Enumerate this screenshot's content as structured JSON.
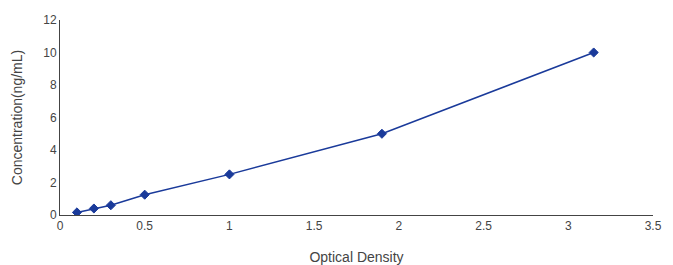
{
  "chart_data": {
    "type": "line",
    "x": [
      0.1,
      0.2,
      0.3,
      0.5,
      1.0,
      1.9,
      3.15
    ],
    "values": [
      0.16,
      0.4,
      0.6,
      1.25,
      2.5,
      5.0,
      10.0
    ],
    "color": "#1a3a9a",
    "marker": "diamond",
    "line_style": "solid",
    "xlabel": "Optical Density",
    "ylabel": "Concentration(ng/mL)",
    "xlim": [
      0,
      3.5
    ],
    "ylim": [
      0,
      12
    ],
    "xticks": [
      0,
      0.5,
      1,
      1.5,
      2,
      2.5,
      3,
      3.5
    ],
    "yticks": [
      0,
      2,
      4,
      6,
      8,
      10,
      12
    ],
    "grid": false
  }
}
